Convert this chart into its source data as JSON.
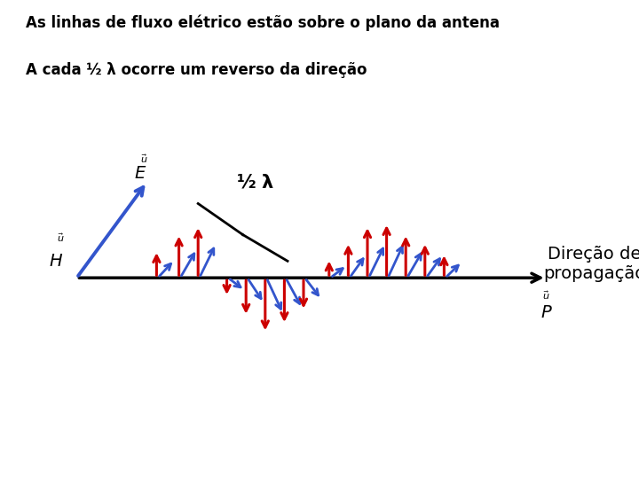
{
  "title1": "As linhas de fluxo elétrico estão sobre o plano da antena",
  "title2": "A cada ½ λ ocorre um reverso da direção",
  "label_direction": "Direção de\npropagação",
  "bg_color": "#ffffff",
  "red_color": "#cc0000",
  "blue_color": "#3355cc",
  "black_color": "#000000",
  "figsize": [
    7.2,
    5.4
  ],
  "dpi": 100
}
